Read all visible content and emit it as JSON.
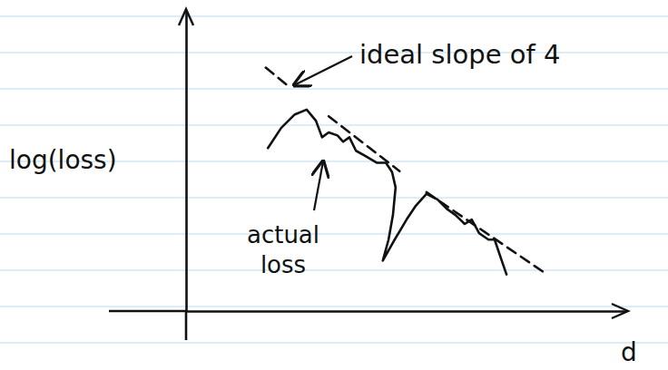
{
  "chart_data": {
    "type": "line",
    "y_label": "log(loss)",
    "x_label": "d",
    "xlim": [
      0,
      100
    ],
    "ylim": [
      0,
      100
    ],
    "xticks": [],
    "yticks": [],
    "tick_labels": false,
    "grid": false,
    "series": [
      {
        "x": [
          18.6,
          21.6,
          24.7,
          27.4,
          29.5,
          30.9,
          32.4,
          34.4,
          35.7,
          37.1,
          38.6,
          40.6,
          43.3,
          45.4,
          46.8,
          47.6,
          47.0,
          46.0,
          44.7,
          47.4,
          50.1,
          52.2,
          54.6,
          57.1,
          59.2,
          61.2,
          63.3,
          64.9,
          66.6,
          68.7,
          70.1,
          71.5,
          72.8
        ],
        "values": [
          54.3,
          61.0,
          65.5,
          67.1,
          63.4,
          57.9,
          59.5,
          58.5,
          56.4,
          57.9,
          53.4,
          51.8,
          49.4,
          49.4,
          46.3,
          41.2,
          32.0,
          23.8,
          16.8,
          23.8,
          30.5,
          35.1,
          39.0,
          37.2,
          34.1,
          32.0,
          29.0,
          30.5,
          25.9,
          23.8,
          23.8,
          17.7,
          12.2
        ],
        "color": "#111111",
        "line_style": "solid"
      },
      {
        "x": [
          18.1,
          23.7,
          null,
          32.4,
          48.5,
          null,
          54.6,
          81.4
        ],
        "values": [
          81.1,
          74.4,
          null,
          64.9,
          46.6,
          null,
          39.6,
          12.8
        ],
        "color": "#111111",
        "line_style": "dashed"
      }
    ],
    "annotations": [
      {
        "text": "ideal slope of 4"
      },
      {
        "text": "actual loss"
      }
    ]
  }
}
